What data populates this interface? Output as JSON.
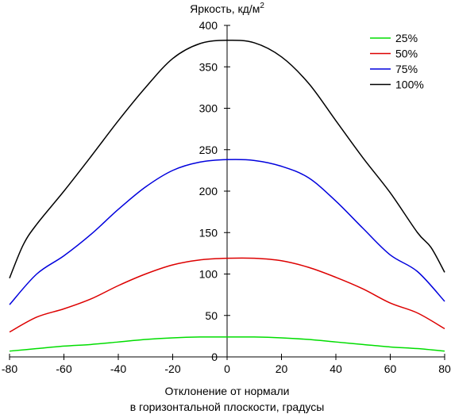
{
  "chart_data": {
    "type": "line",
    "ylabel": "Яркость, кд/м",
    "ylabel_superscript": "2",
    "xlabel_line1": "Отклонение от нормали",
    "xlabel_line2": "в горизонтальной плоскости, градусы",
    "xlim": [
      -80,
      80
    ],
    "ylim": [
      0,
      400
    ],
    "x_ticks": [
      "-80",
      "-60",
      "-40",
      "-20",
      "0",
      "20",
      "40",
      "60",
      "80"
    ],
    "y_ticks": [
      "0",
      "50",
      "100",
      "150",
      "200",
      "250",
      "300",
      "350",
      "400"
    ],
    "grid": false,
    "legend_position": "top-right",
    "series": [
      {
        "name": "25%",
        "color": "#00dd00",
        "x": [
          -80,
          -70,
          -60,
          -50,
          -40,
          -30,
          -20,
          -10,
          0,
          10,
          20,
          30,
          40,
          50,
          60,
          70,
          80
        ],
        "y": [
          7,
          10,
          13,
          15,
          18,
          21,
          23,
          24,
          24,
          24,
          23,
          21,
          18,
          15,
          12,
          10,
          7
        ]
      },
      {
        "name": "50%",
        "color": "#dd0000",
        "x": [
          -80,
          -70,
          -60,
          -50,
          -40,
          -30,
          -20,
          -10,
          0,
          10,
          20,
          30,
          40,
          50,
          60,
          70,
          80
        ],
        "y": [
          30,
          48,
          58,
          70,
          86,
          100,
          111,
          117,
          119,
          119,
          116,
          108,
          96,
          82,
          65,
          53,
          34
        ]
      },
      {
        "name": "75%",
        "color": "#0000dd",
        "x": [
          -80,
          -70,
          -60,
          -50,
          -40,
          -30,
          -20,
          -10,
          0,
          10,
          20,
          30,
          40,
          50,
          60,
          70,
          80
        ],
        "y": [
          63,
          100,
          122,
          148,
          178,
          205,
          225,
          235,
          238,
          237,
          230,
          216,
          188,
          155,
          123,
          103,
          67
        ]
      },
      {
        "name": "100%",
        "color": "#000000",
        "x": [
          -80,
          -75,
          -70,
          -60,
          -50,
          -40,
          -30,
          -20,
          -10,
          0,
          10,
          20,
          30,
          40,
          50,
          60,
          70,
          75,
          80
        ],
        "y": [
          95,
          135,
          160,
          200,
          242,
          285,
          325,
          360,
          378,
          382,
          379,
          362,
          330,
          285,
          240,
          198,
          150,
          132,
          102
        ]
      }
    ]
  }
}
